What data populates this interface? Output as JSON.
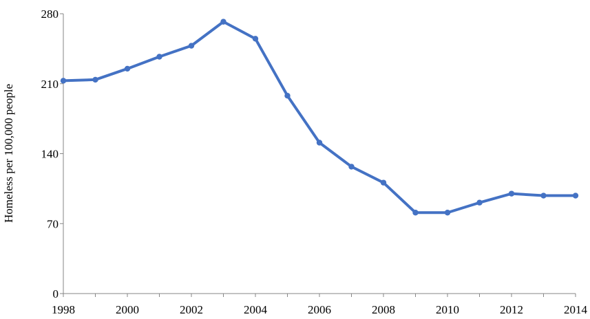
{
  "chart_data": {
    "type": "line",
    "title": "",
    "xlabel": "",
    "ylabel": "Homeless per 100,000 people",
    "x": [
      1998,
      1999,
      2000,
      2001,
      2002,
      2003,
      2004,
      2005,
      2006,
      2007,
      2008,
      2009,
      2010,
      2011,
      2012,
      2013,
      2014
    ],
    "series": [
      {
        "values": [
          213,
          214,
          225,
          237,
          248,
          272,
          255,
          198,
          151,
          127,
          111,
          81,
          81,
          91,
          100,
          98,
          98
        ]
      }
    ],
    "xlim": [
      1998,
      2014
    ],
    "ylim": [
      0,
      280
    ],
    "x_ticks": [
      "1998",
      "2000",
      "2002",
      "2004",
      "2006",
      "2008",
      "2010",
      "2012",
      "2014"
    ],
    "y_ticks": [
      "0",
      "70",
      "140",
      "210",
      "280"
    ],
    "grid": false,
    "legend": "none",
    "line_color": "#4472C4"
  }
}
